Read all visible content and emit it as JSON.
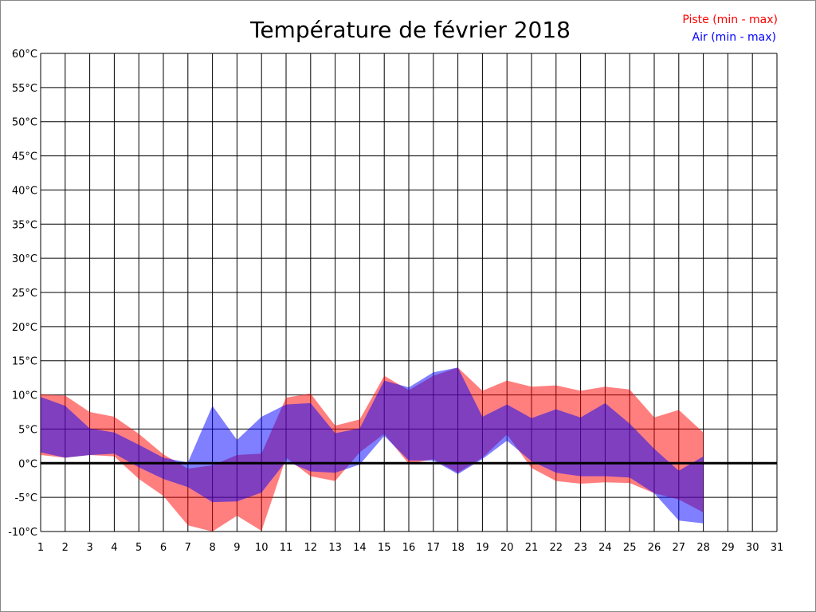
{
  "chart_data": {
    "type": "area",
    "title": "Température de février 2018",
    "xlabel": "",
    "ylabel": "",
    "x": [
      1,
      2,
      3,
      4,
      5,
      6,
      7,
      8,
      9,
      10,
      11,
      12,
      13,
      14,
      15,
      16,
      17,
      18,
      19,
      20,
      21,
      22,
      23,
      24,
      25,
      26,
      27,
      28
    ],
    "xticks": [
      "1",
      "2",
      "3",
      "4",
      "5",
      "6",
      "7",
      "8",
      "9",
      "10",
      "11",
      "12",
      "13",
      "14",
      "15",
      "16",
      "17",
      "18",
      "19",
      "20",
      "21",
      "22",
      "23",
      "24",
      "25",
      "26",
      "27",
      "28",
      "29",
      "30",
      "31"
    ],
    "yticks": [
      "60°C",
      "55°C",
      "50°C",
      "45°C",
      "40°C",
      "35°C",
      "30°C",
      "25°C",
      "20°C",
      "15°C",
      "10°C",
      "5°C",
      "0°C",
      "-5°C",
      "-10°C"
    ],
    "xlim": [
      1,
      31
    ],
    "ylim": [
      -10,
      60
    ],
    "grid": true,
    "legend_position": "top-right",
    "series": [
      {
        "name": "Piste (min - max)",
        "color": "#ff0000",
        "max": [
          10.1,
          9.9,
          7.5,
          6.8,
          4.3,
          1.3,
          -0.8,
          -0.3,
          1.2,
          1.4,
          9.6,
          10.2,
          5.5,
          6.4,
          12.8,
          10.7,
          12.8,
          14,
          10.6,
          12.1,
          11.2,
          11.4,
          10.6,
          11.2,
          10.8,
          6.7,
          7.8,
          4.5
        ],
        "min": [
          1.2,
          0.8,
          1.2,
          1.0,
          -2.3,
          -4.8,
          -9.1,
          -10,
          -7.7,
          -9.9,
          0.8,
          -1.9,
          -2.6,
          1.6,
          4.3,
          -0.1,
          0.6,
          -1.4,
          0.8,
          4.2,
          -0.7,
          -2.6,
          -3.0,
          -2.8,
          -2.9,
          -4.4,
          -5.3,
          -7.2
        ]
      },
      {
        "name": "Air (min - max)",
        "color": "#0000ff",
        "max": [
          9.7,
          8.4,
          5.1,
          4.5,
          2.7,
          0.8,
          0.1,
          8.4,
          3.4,
          6.8,
          8.6,
          8.8,
          4.4,
          5.1,
          12.1,
          11.1,
          13.3,
          14,
          6.8,
          8.6,
          6.6,
          7.9,
          6.7,
          8.8,
          5.8,
          2.1,
          -1.1,
          1.0
        ],
        "min": [
          1.6,
          0.8,
          1.2,
          1.4,
          -0.6,
          -2.3,
          -3.5,
          -5.7,
          -5.6,
          -4.3,
          0.3,
          -1.2,
          -1.4,
          -0.2,
          4.0,
          0.4,
          0.4,
          -1.6,
          0.6,
          3.3,
          0.3,
          -1.4,
          -1.9,
          -1.9,
          -2.1,
          -4.4,
          -8.4,
          -8.8
        ]
      }
    ]
  }
}
